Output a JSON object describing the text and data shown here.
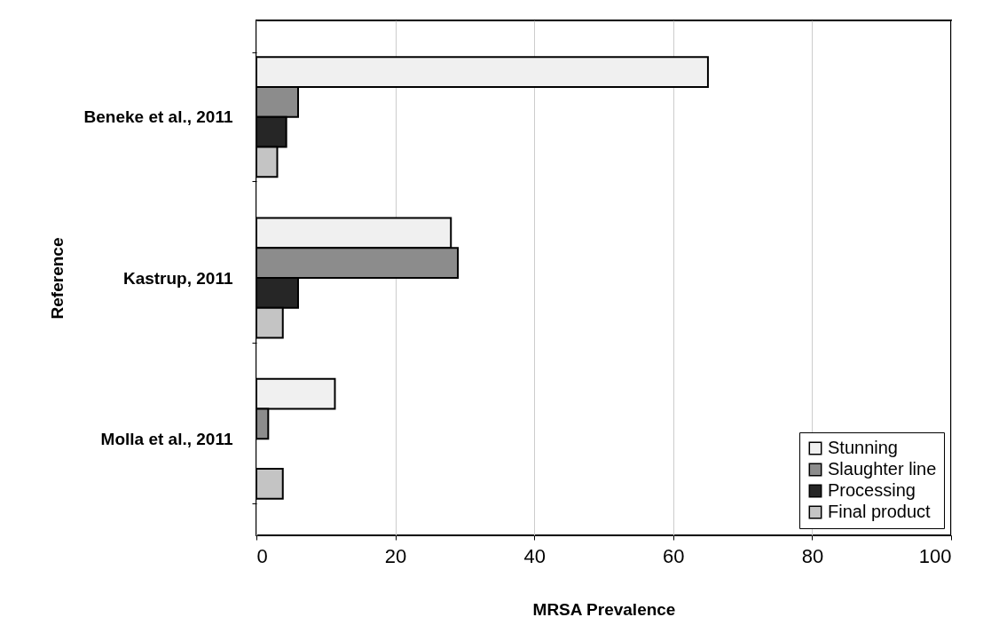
{
  "chart_data": {
    "type": "bar",
    "orientation": "horizontal",
    "xlabel": "MRSA Prevalence",
    "ylabel": "Reference",
    "categories": [
      "Beneke et al., 2011",
      "Kastrup, 2011",
      "Molla et al., 2011"
    ],
    "series": [
      {
        "name": "Stunning",
        "color": "#f0f0f0",
        "values": [
          65,
          28,
          11.3
        ]
      },
      {
        "name": "Slaughter line",
        "color": "#8c8c8c",
        "values": [
          6,
          29,
          1.7
        ]
      },
      {
        "name": "Processing",
        "color": "#262626",
        "values": [
          4.3,
          6,
          null
        ]
      },
      {
        "name": "Final product",
        "color": "#c4c4c4",
        "values": [
          3,
          3.8,
          3.8
        ]
      }
    ],
    "xlim": [
      0,
      100
    ],
    "xticks": [
      0,
      20,
      40,
      60,
      80,
      100
    ],
    "grid": "x",
    "legend": "bottom right"
  }
}
